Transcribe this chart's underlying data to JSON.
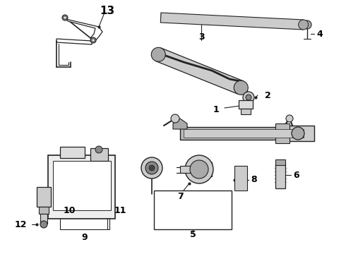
{
  "bg_color": "#ffffff",
  "line_color": "#222222",
  "label_color": "#000000",
  "fig_w": 4.9,
  "fig_h": 3.6,
  "dpi": 100
}
